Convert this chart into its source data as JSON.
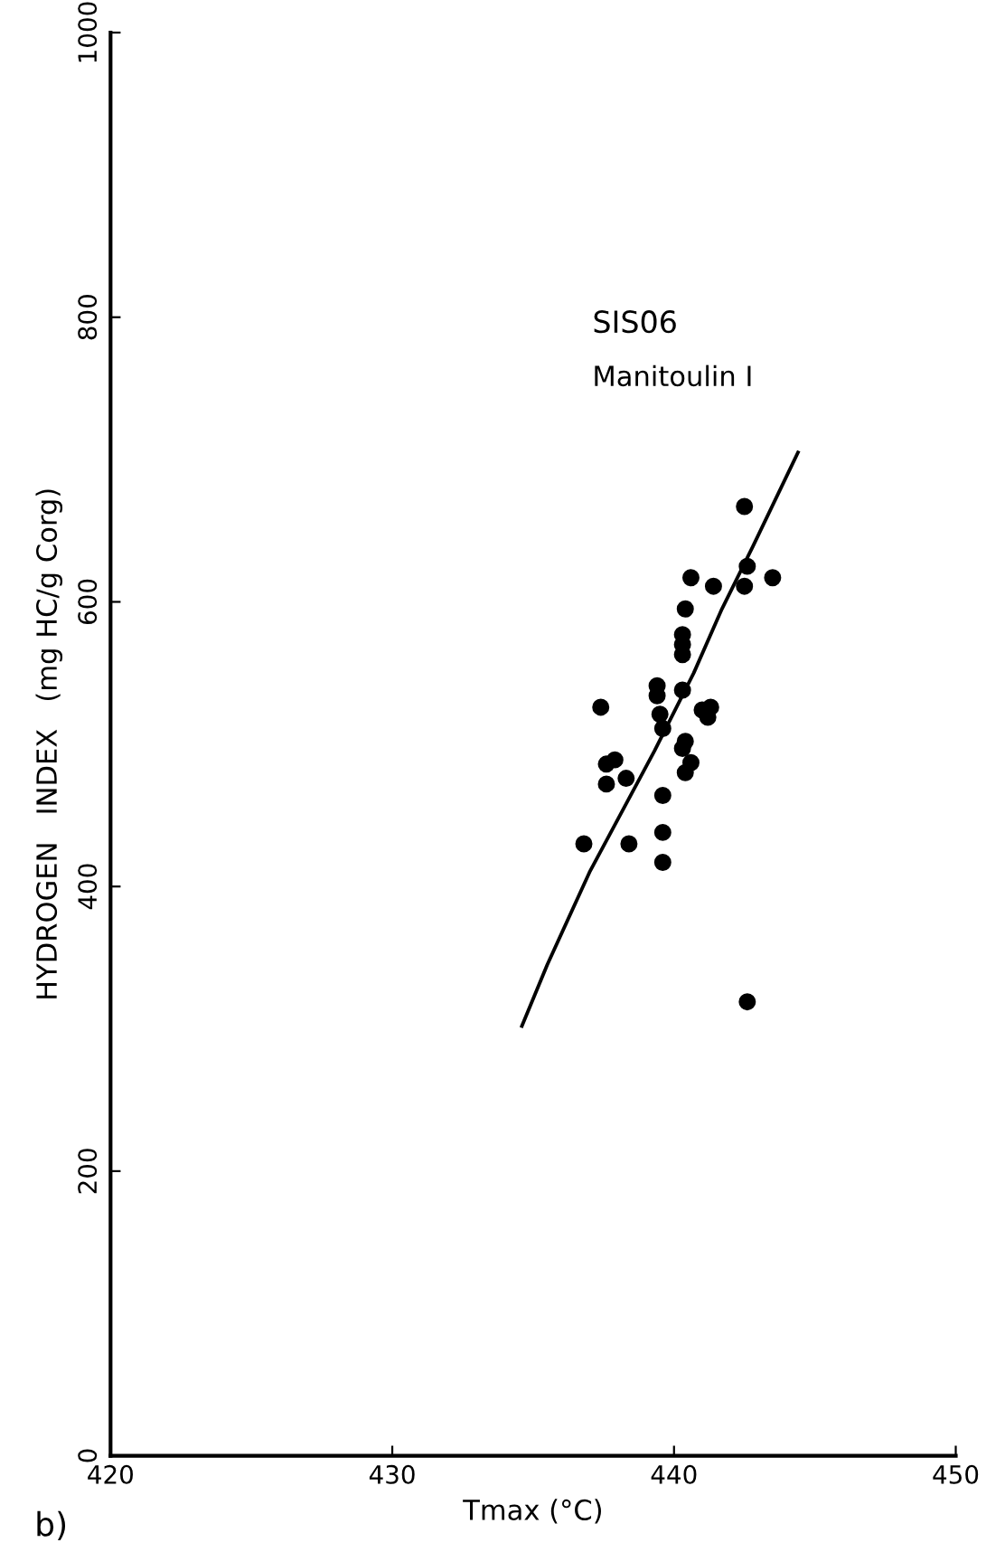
{
  "chart_data": {
    "type": "scatter",
    "xlabel": "Tmax (°C)",
    "ylabel": "HYDROGEN   INDEX   (mg HC/g Corg)",
    "xlim": [
      420,
      450
    ],
    "ylim": [
      0,
      1000
    ],
    "xticks": [
      420,
      430,
      440,
      450
    ],
    "yticks": [
      0,
      200,
      400,
      600,
      800,
      1000
    ],
    "grid": false,
    "series": [
      {
        "marker": "circle",
        "color": "#000000",
        "x": [
          442.5,
          442.6,
          442.5,
          443.5,
          440.6,
          441.4,
          440.4,
          440.3,
          440.3,
          440.3,
          437.4,
          439.4,
          439.4,
          439.5,
          439.6,
          440.3,
          441.0,
          441.3,
          441.2,
          440.4,
          440.3,
          440.6,
          440.4,
          437.6,
          437.9,
          437.6,
          438.3,
          439.6,
          436.8,
          438.4,
          439.6,
          439.6,
          442.6
        ],
        "values": [
          667,
          625,
          611,
          617,
          617,
          611,
          595,
          577,
          570,
          563,
          526,
          541,
          534,
          521,
          511,
          538,
          524,
          526,
          519,
          502,
          497,
          487,
          480,
          486,
          489,
          472,
          476,
          464,
          430,
          430,
          438,
          417,
          319
        ]
      },
      {
        "type": "line",
        "color": "#000000",
        "line_style": "solid",
        "x": [
          434.6,
          435.5,
          437.0,
          439.3,
          440.7,
          441.7,
          442.8,
          444.4
        ],
        "values": [
          302,
          345,
          410,
          495,
          550,
          595,
          639,
          705
        ]
      }
    ],
    "annotations": [
      "SIS06",
      "Manitoulin I",
      "b)"
    ]
  }
}
